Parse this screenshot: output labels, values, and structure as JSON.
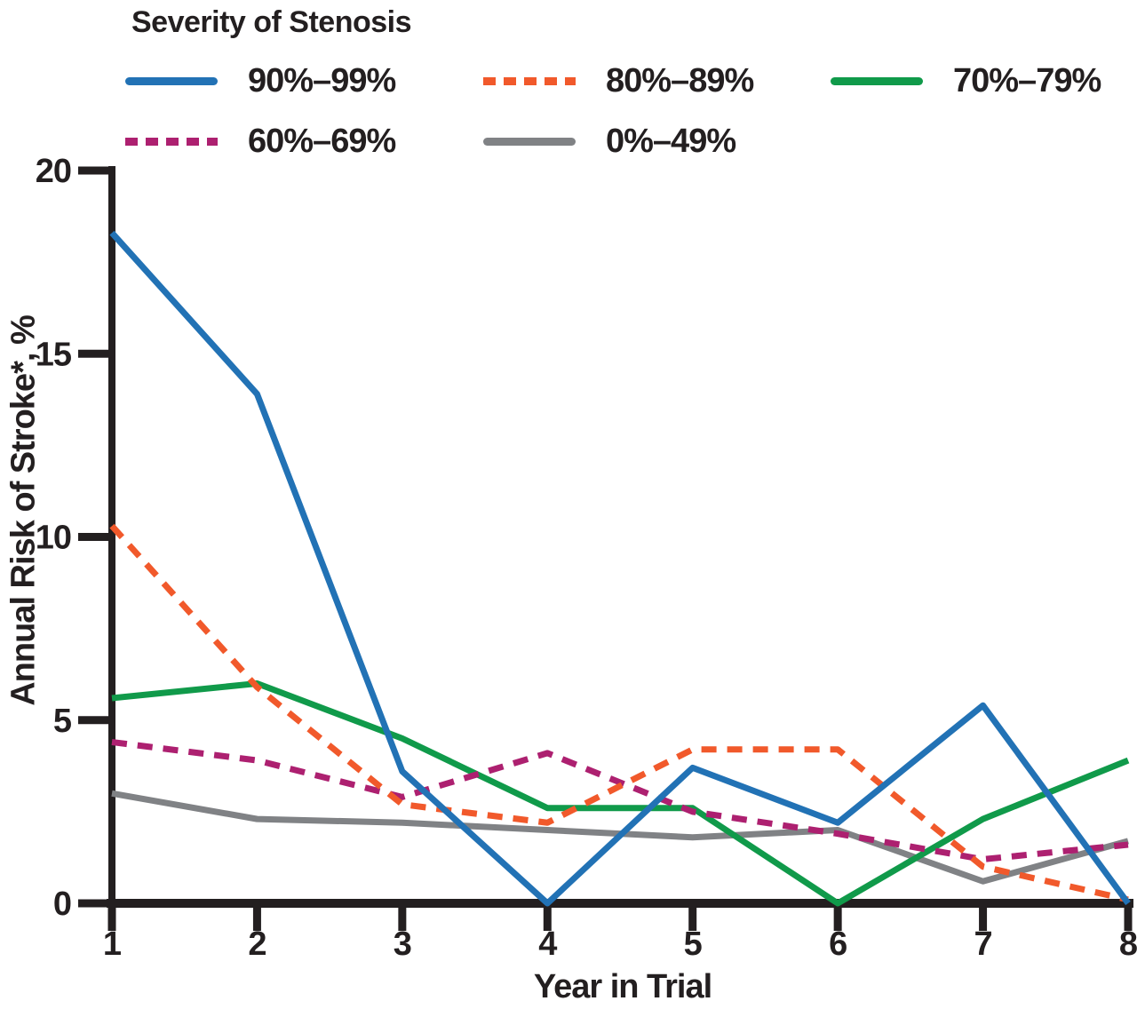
{
  "chart_data": {
    "type": "line",
    "legend_title": "Severity of Stenosis",
    "xlabel": "Year in Trial",
    "ylabel": "Annual Risk of Stroke*, %",
    "x": [
      1,
      2,
      3,
      4,
      5,
      6,
      7,
      8
    ],
    "xticks": [
      "1",
      "2",
      "3",
      "4",
      "5",
      "6",
      "7",
      "8"
    ],
    "yticks": [
      "0",
      "5",
      "10",
      "15",
      "20"
    ],
    "ytick_values": [
      0,
      5,
      10,
      15,
      20
    ],
    "xlim": [
      1,
      8
    ],
    "ylim": [
      0,
      20
    ],
    "grid": false,
    "legend_position": "top-left",
    "axis_color": "#231f20",
    "background_color": "#ffffff",
    "series": [
      {
        "name": "90%–99%",
        "color": "#2272b5",
        "dash": "solid",
        "values": [
          18.3,
          13.9,
          3.6,
          0.0,
          3.7,
          2.2,
          5.4,
          0.0
        ]
      },
      {
        "name": "80%–89%",
        "color": "#f1592b",
        "dash": "dashed",
        "values": [
          10.3,
          5.9,
          2.7,
          2.2,
          4.2,
          4.2,
          1.0,
          0.1
        ]
      },
      {
        "name": "70%–79%",
        "color": "#109a4a",
        "dash": "solid",
        "values": [
          5.6,
          6.0,
          4.5,
          2.6,
          2.6,
          0.0,
          2.3,
          3.9
        ]
      },
      {
        "name": "60%–69%",
        "color": "#ad2070",
        "dash": "dashed",
        "values": [
          4.4,
          3.9,
          2.9,
          4.1,
          2.5,
          1.9,
          1.2,
          1.6
        ]
      },
      {
        "name": "0%–49%",
        "color": "#808285",
        "dash": "solid",
        "values": [
          3.0,
          2.3,
          2.2,
          2.0,
          1.8,
          2.0,
          0.6,
          1.7
        ]
      }
    ]
  }
}
